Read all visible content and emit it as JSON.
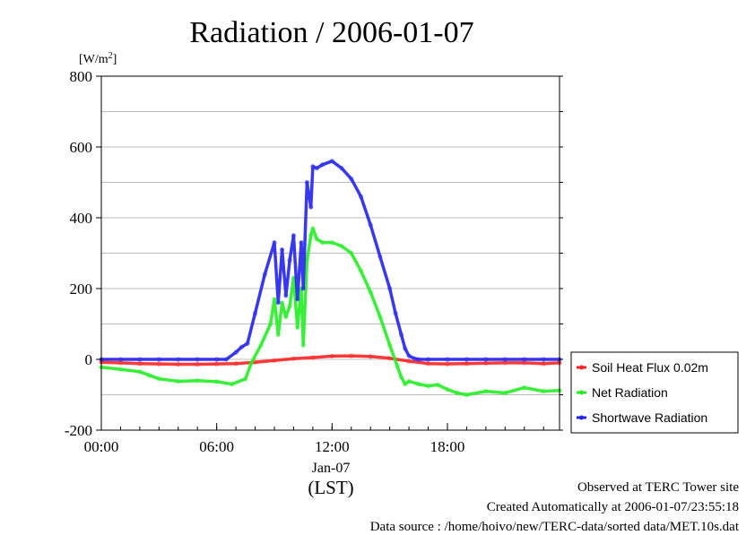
{
  "chart_data": {
    "type": "line",
    "title": "Radiation / 2006-01-07",
    "ylabel": "[W/m",
    "ylabel_sup": "2",
    "ylabel_tail": "]",
    "xlabel": "(LST)",
    "x_date_label": "Jan-07",
    "x_unit": "hour",
    "xlim": [
      0,
      23.83
    ],
    "ylim": [
      -200,
      800
    ],
    "yticks": [
      -200,
      0,
      200,
      400,
      600,
      800
    ],
    "ytick_labels": [
      "-200",
      "0",
      "200",
      "400",
      "600",
      "800"
    ],
    "xticks": [
      0,
      6,
      12,
      18
    ],
    "xtick_labels": [
      "00:00",
      "06:00",
      "12:00",
      "18:00"
    ],
    "grid": true,
    "legend_position": "right",
    "series": [
      {
        "name": "Soil Heat Flux 0.02m",
        "color": "#ff2222",
        "x": [
          0,
          1,
          2,
          3,
          4,
          5,
          6,
          7,
          8,
          9,
          10,
          11,
          12,
          13,
          14,
          15,
          16,
          17,
          18,
          19,
          20,
          21,
          22,
          23,
          23.83
        ],
        "y": [
          -8,
          -10,
          -12,
          -13,
          -14,
          -14,
          -13,
          -12,
          -8,
          -3,
          2,
          5,
          9,
          10,
          8,
          3,
          -5,
          -12,
          -13,
          -12,
          -11,
          -10,
          -10,
          -12,
          -10
        ]
      },
      {
        "name": "Net Radiation",
        "color": "#22ee22",
        "x": [
          0,
          1,
          2,
          2.5,
          3,
          4,
          5,
          6,
          6.8,
          7.5,
          7.8,
          8.3,
          8.8,
          9.0,
          9.2,
          9.4,
          9.6,
          9.8,
          10.0,
          10.2,
          10.4,
          10.5,
          10.7,
          10.9,
          11.0,
          11.2,
          11.5,
          12.0,
          12.5,
          13.0,
          13.5,
          14.0,
          14.5,
          15.0,
          15.4,
          15.6,
          15.8,
          16.0,
          16.5,
          17.0,
          17.5,
          18.0,
          18.5,
          19.0,
          20.0,
          21.0,
          22.0,
          23.0,
          23.83
        ],
        "y": [
          -22,
          -28,
          -35,
          -45,
          -55,
          -62,
          -60,
          -63,
          -70,
          -55,
          -10,
          40,
          100,
          170,
          70,
          160,
          120,
          150,
          230,
          90,
          200,
          40,
          280,
          350,
          370,
          340,
          330,
          330,
          320,
          300,
          250,
          190,
          120,
          40,
          -20,
          -50,
          -70,
          -62,
          -70,
          -75,
          -72,
          -85,
          -95,
          -100,
          -90,
          -95,
          -80,
          -90,
          -88
        ]
      },
      {
        "name": "Shortwave Radiation",
        "color": "#2222ee",
        "x": [
          0,
          1,
          2,
          3,
          4,
          5,
          6,
          6.5,
          7.0,
          7.3,
          7.6,
          8.0,
          8.5,
          9.0,
          9.2,
          9.4,
          9.6,
          9.8,
          10.0,
          10.2,
          10.4,
          10.5,
          10.7,
          10.9,
          11.0,
          11.2,
          11.5,
          12.0,
          12.5,
          13.0,
          13.5,
          14.0,
          14.5,
          15.0,
          15.3,
          15.6,
          15.8,
          16.0,
          16.3,
          16.5,
          17.0,
          18.0,
          19.0,
          20.0,
          21.0,
          22.0,
          23.0,
          23.83
        ],
        "y": [
          0,
          0,
          0,
          0,
          0,
          0,
          0,
          0,
          20,
          35,
          45,
          130,
          240,
          330,
          160,
          310,
          180,
          280,
          350,
          170,
          330,
          200,
          500,
          430,
          545,
          540,
          550,
          560,
          540,
          510,
          460,
          380,
          290,
          200,
          130,
          70,
          30,
          10,
          2,
          0,
          0,
          0,
          0,
          0,
          0,
          0,
          0,
          0
        ]
      }
    ]
  },
  "footer": {
    "observed": "Observed at TERC Tower site",
    "created": "Created Automatically at 2006-01-07/23:55:18",
    "source": "Data source : /home/hoivo/new/TERC-data/sorted  data/MET.10s.dat"
  }
}
